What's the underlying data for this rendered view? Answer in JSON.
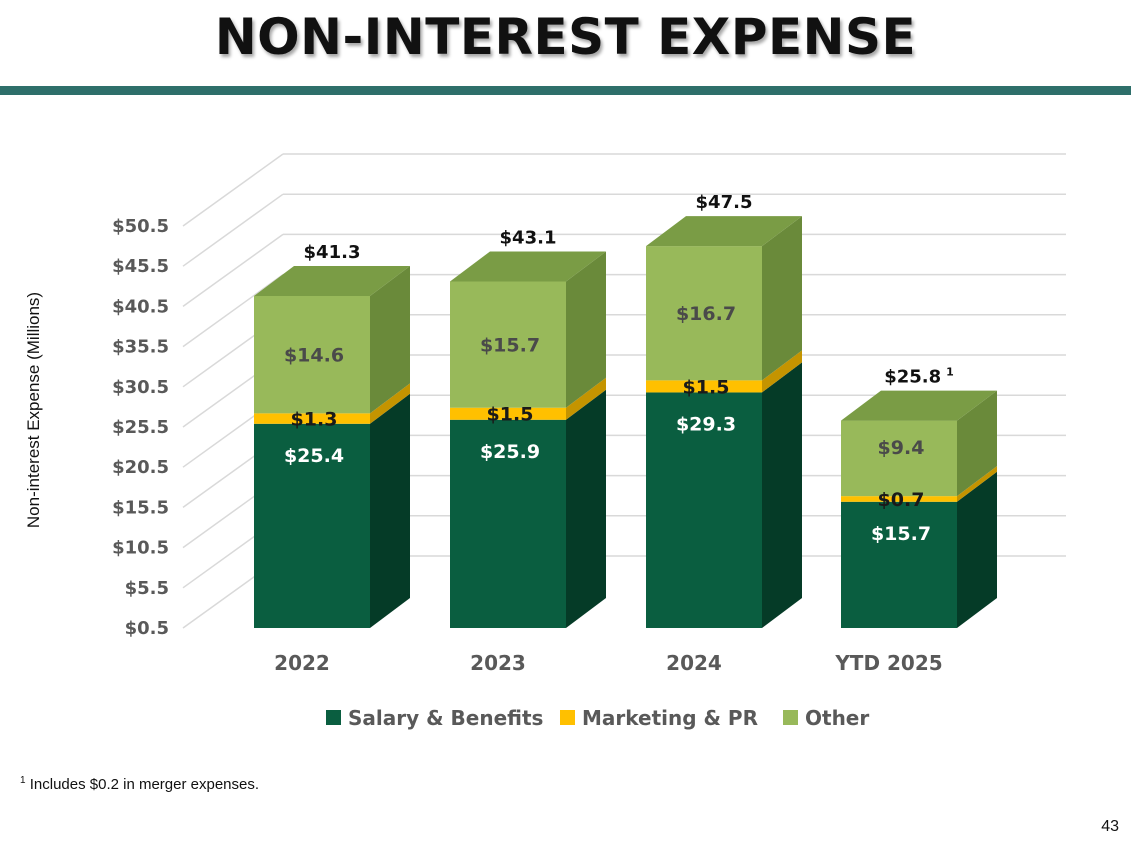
{
  "title": "NON-INTEREST EXPENSE",
  "footnote": {
    "marker": "1",
    "text": " Includes $0.2 in merger expenses."
  },
  "page_number": "43",
  "colors": {
    "salary": "#0a5e40",
    "salary_side": "#053b27",
    "marketing": "#ffc000",
    "marketing_side": "#c49400",
    "other": "#98b95a",
    "other_side": "#6a8a3a",
    "other_top": "#7a9c45",
    "rule": "#2e6f6a"
  },
  "chart_data": {
    "type": "bar",
    "stacked": true,
    "three_d": true,
    "ylabel": "Non-interest Expense (Millions)",
    "ylim": [
      0.5,
      50.5
    ],
    "ytick_labels": [
      "$0.5",
      "$5.5",
      "$10.5",
      "$15.5",
      "$20.5",
      "$25.5",
      "$30.5",
      "$35.5",
      "$40.5",
      "$45.5",
      "$50.5"
    ],
    "categories": [
      "2022",
      "2023",
      "2024",
      "YTD 2025"
    ],
    "series": [
      {
        "name": "Salary & Benefits",
        "values": [
          25.4,
          25.9,
          29.3,
          15.7
        ],
        "labels": [
          "$25.4",
          "$25.9",
          "$29.3",
          "$15.7"
        ]
      },
      {
        "name": "Marketing & PR",
        "values": [
          1.3,
          1.5,
          1.5,
          0.7
        ],
        "labels": [
          "$1.3",
          "$1.5",
          "$1.5",
          "$0.7"
        ]
      },
      {
        "name": "Other",
        "values": [
          14.6,
          15.7,
          16.7,
          9.4
        ],
        "labels": [
          "$14.6",
          "$15.7",
          "$16.7",
          "$9.4"
        ]
      }
    ],
    "totals": [
      "$41.3",
      "$43.1",
      "$47.5",
      "$25.8"
    ],
    "total_footnote_markers": [
      "",
      "",
      "",
      "1"
    ],
    "grid": true,
    "legend_position": "bottom"
  }
}
